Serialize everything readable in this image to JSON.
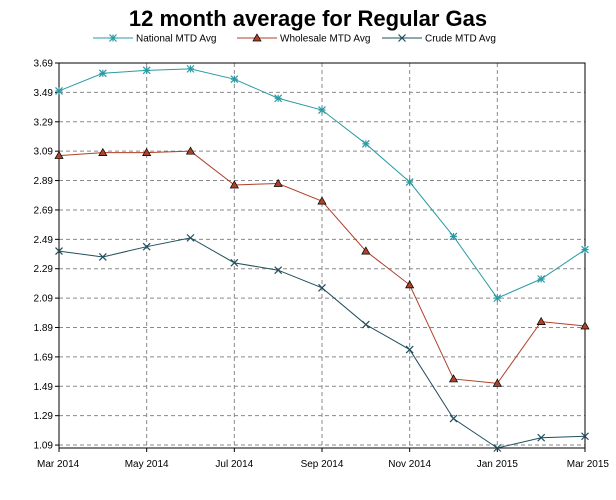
{
  "chart_data": {
    "type": "line",
    "title": "12 month average for Regular Gas",
    "xlabel": "",
    "ylabel": "",
    "x": [
      "Mar 2014",
      "Apr 2014",
      "May 2014",
      "Jun 2014",
      "Jul 2014",
      "Aug 2014",
      "Sep 2014",
      "Oct 2014",
      "Nov 2014",
      "Dec 2014",
      "Jan 2015",
      "Feb 2015",
      "Mar 2015"
    ],
    "x_tick_labels": [
      "Mar 2014",
      "May 2014",
      "Jul 2014",
      "Sep 2014",
      "Nov 2014",
      "Jan 2015",
      "Mar 2015"
    ],
    "y_ticks": [
      "3.69",
      "3.49",
      "3.29",
      "3.09",
      "2.89",
      "2.69",
      "2.49",
      "2.29",
      "2.09",
      "1.89",
      "1.69",
      "1.49",
      "1.29",
      "1.09"
    ],
    "ylim": [
      1.07,
      3.69
    ],
    "grid": true,
    "legend_position": "top",
    "series": [
      {
        "name": "National MTD Avg",
        "color": "#2a9aa3",
        "marker": "asterisk",
        "values": [
          3.5,
          3.62,
          3.64,
          3.65,
          3.58,
          3.45,
          3.37,
          3.14,
          2.88,
          2.51,
          2.09,
          2.22,
          2.42
        ]
      },
      {
        "name": "Wholesale MTD Avg",
        "color": "#b0402a",
        "marker": "triangle",
        "values": [
          3.06,
          3.08,
          3.08,
          3.09,
          2.86,
          2.87,
          2.75,
          2.41,
          2.18,
          1.54,
          1.51,
          1.93,
          1.9
        ]
      },
      {
        "name": "Crude MTD Avg",
        "color": "#1f4f5c",
        "marker": "x",
        "values": [
          2.41,
          2.37,
          2.44,
          2.5,
          2.33,
          2.28,
          2.16,
          1.91,
          1.74,
          1.27,
          1.07,
          1.14,
          1.15
        ]
      }
    ]
  }
}
